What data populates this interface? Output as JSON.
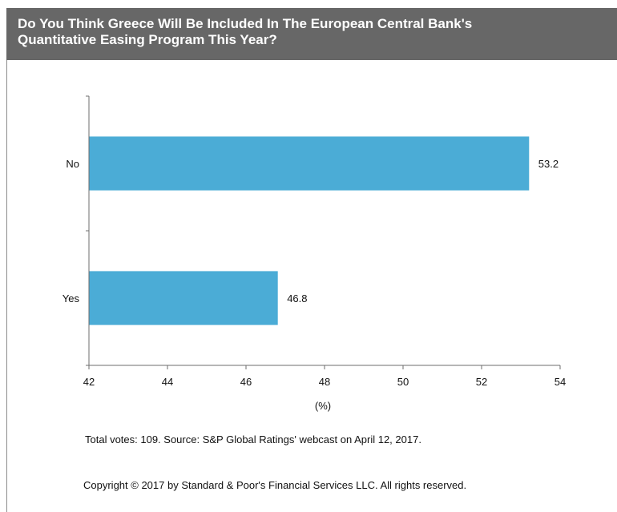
{
  "title": {
    "line1": "Do You Think Greece Will Be Included In The European Central Bank's",
    "line2": "Quantitative Easing Program This Year?"
  },
  "chart_data": {
    "type": "bar",
    "orientation": "horizontal",
    "categories": [
      "No",
      "Yes"
    ],
    "values": [
      53.2,
      46.8
    ],
    "value_labels": [
      "53.2",
      "46.8"
    ],
    "xlabel": "(%)",
    "xlim": [
      42,
      54
    ],
    "xticks": [
      42,
      44,
      46,
      48,
      50,
      52,
      54
    ],
    "grid": false,
    "bar_color": "#4bacd6"
  },
  "footnotes": {
    "source": "Total votes: 109. Source: S&P Global Ratings' webcast on April 12, 2017.",
    "copyright": "Copyright © 2017 by Standard & Poor's Financial Services LLC. All rights reserved."
  }
}
